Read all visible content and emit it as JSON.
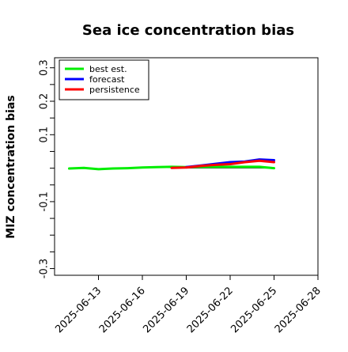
{
  "chart_data": {
    "type": "line",
    "title": "Sea ice concentration bias",
    "xlabel": "",
    "ylabel": "MIZ concentration bias",
    "ylim": [
      -0.32,
      0.33
    ],
    "xlim": [
      "2025-06-10",
      "2025-06-28"
    ],
    "yticks": [
      -0.3,
      -0.25,
      -0.2,
      -0.15,
      -0.1,
      -0.05,
      0.0,
      0.05,
      0.1,
      0.15,
      0.2,
      0.25,
      0.3
    ],
    "ytick_labels": [
      "-0.3",
      "",
      "",
      "",
      "-0.1",
      "",
      "",
      "",
      "0.1",
      "",
      "0.2",
      "",
      "0.3"
    ],
    "xticks": [
      "2025-06-13",
      "2025-06-16",
      "2025-06-19",
      "2025-06-22",
      "2025-06-25",
      "2025-06-28"
    ],
    "xtick_labels": [
      "2025-06-13",
      "2025-06-16",
      "2025-06-19",
      "2025-06-22",
      "2025-06-25",
      "2025-06-28"
    ],
    "highlighted_xtick": "2025-06-19",
    "highlight_color": "#228b22",
    "zero_line": true,
    "grid": false,
    "legend_position": "top-left",
    "series": [
      {
        "name": "best est.",
        "color": "#00ee00",
        "points": [
          [
            "2025-06-11",
            -0.001
          ],
          [
            "2025-06-12",
            0.001
          ],
          [
            "2025-06-13",
            -0.003
          ],
          [
            "2025-06-14",
            -0.001
          ],
          [
            "2025-06-15",
            0.0
          ],
          [
            "2025-06-16",
            0.002
          ],
          [
            "2025-06-17",
            0.003
          ],
          [
            "2025-06-18",
            0.004
          ],
          [
            "2025-06-19",
            0.003
          ],
          [
            "2025-06-20",
            0.004
          ],
          [
            "2025-06-21",
            0.004
          ],
          [
            "2025-06-22",
            0.004
          ],
          [
            "2025-06-23",
            0.004
          ],
          [
            "2025-06-24",
            0.004
          ],
          [
            "2025-06-25",
            0.0
          ]
        ]
      },
      {
        "name": "forecast",
        "color": "#0000ff",
        "points": [
          [
            "2025-06-19",
            0.003
          ],
          [
            "2025-06-20",
            0.008
          ],
          [
            "2025-06-21",
            0.013
          ],
          [
            "2025-06-22",
            0.018
          ],
          [
            "2025-06-23",
            0.02
          ],
          [
            "2025-06-24",
            0.026
          ],
          [
            "2025-06-25",
            0.024
          ]
        ]
      },
      {
        "name": "persistence",
        "color": "#ff0000",
        "points": [
          [
            "2025-06-18",
            0.001
          ],
          [
            "2025-06-19",
            0.002
          ],
          [
            "2025-06-20",
            0.007
          ],
          [
            "2025-06-21",
            0.01
          ],
          [
            "2025-06-22",
            0.012
          ],
          [
            "2025-06-23",
            0.018
          ],
          [
            "2025-06-24",
            0.022
          ],
          [
            "2025-06-25",
            0.018
          ]
        ]
      }
    ]
  }
}
